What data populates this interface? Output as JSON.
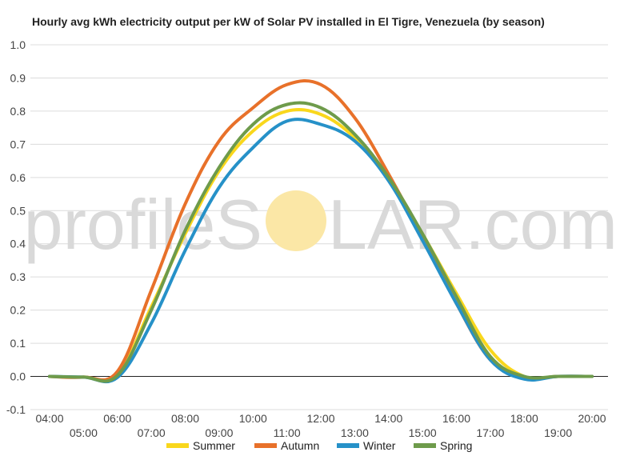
{
  "title": "Hourly avg kWh electricity output per kW of Solar PV installed in El Tigre, Venezuela (by season)",
  "watermark": {
    "text_left": "profileS",
    "text_right": "LAR.com",
    "sun_color": "#FBE7A6",
    "text_color": "#D9D9D9"
  },
  "chart_data": {
    "type": "line",
    "title": "Hourly avg kWh electricity output per kW of Solar PV installed in El Tigre, Venezuela (by season)",
    "xlabel": "",
    "ylabel": "",
    "x": [
      "04:00",
      "05:00",
      "06:00",
      "07:00",
      "08:00",
      "09:00",
      "10:00",
      "11:00",
      "12:00",
      "13:00",
      "14:00",
      "15:00",
      "16:00",
      "17:00",
      "18:00",
      "19:00",
      "20:00"
    ],
    "ylim": [
      -0.1,
      1.0
    ],
    "yticks": [
      "-0.1",
      "0.0",
      "0.1",
      "0.2",
      "0.3",
      "0.4",
      "0.5",
      "0.6",
      "0.7",
      "0.8",
      "0.9",
      "1.0"
    ],
    "grid": true,
    "legend_position": "bottom",
    "series": [
      {
        "name": "Summer",
        "color": "#F9D71C",
        "values": [
          0.0,
          -0.002,
          0.005,
          0.21,
          0.43,
          0.62,
          0.74,
          0.8,
          0.79,
          0.72,
          0.6,
          0.43,
          0.25,
          0.08,
          0.0,
          0.0,
          0.0
        ]
      },
      {
        "name": "Autumn",
        "color": "#E8712A",
        "values": [
          0.0,
          -0.002,
          0.015,
          0.26,
          0.52,
          0.71,
          0.81,
          0.88,
          0.88,
          0.78,
          0.61,
          0.42,
          0.22,
          0.05,
          -0.005,
          0.0,
          0.0
        ]
      },
      {
        "name": "Winter",
        "color": "#2691C8",
        "values": [
          0.0,
          -0.002,
          -0.003,
          0.16,
          0.38,
          0.57,
          0.69,
          0.77,
          0.76,
          0.71,
          0.59,
          0.41,
          0.22,
          0.05,
          -0.008,
          0.0,
          0.0
        ]
      },
      {
        "name": "Spring",
        "color": "#6E9B4B",
        "values": [
          0.0,
          -0.002,
          0.003,
          0.2,
          0.44,
          0.63,
          0.76,
          0.82,
          0.81,
          0.73,
          0.6,
          0.43,
          0.24,
          0.06,
          0.0,
          0.0,
          0.0
        ]
      }
    ]
  }
}
